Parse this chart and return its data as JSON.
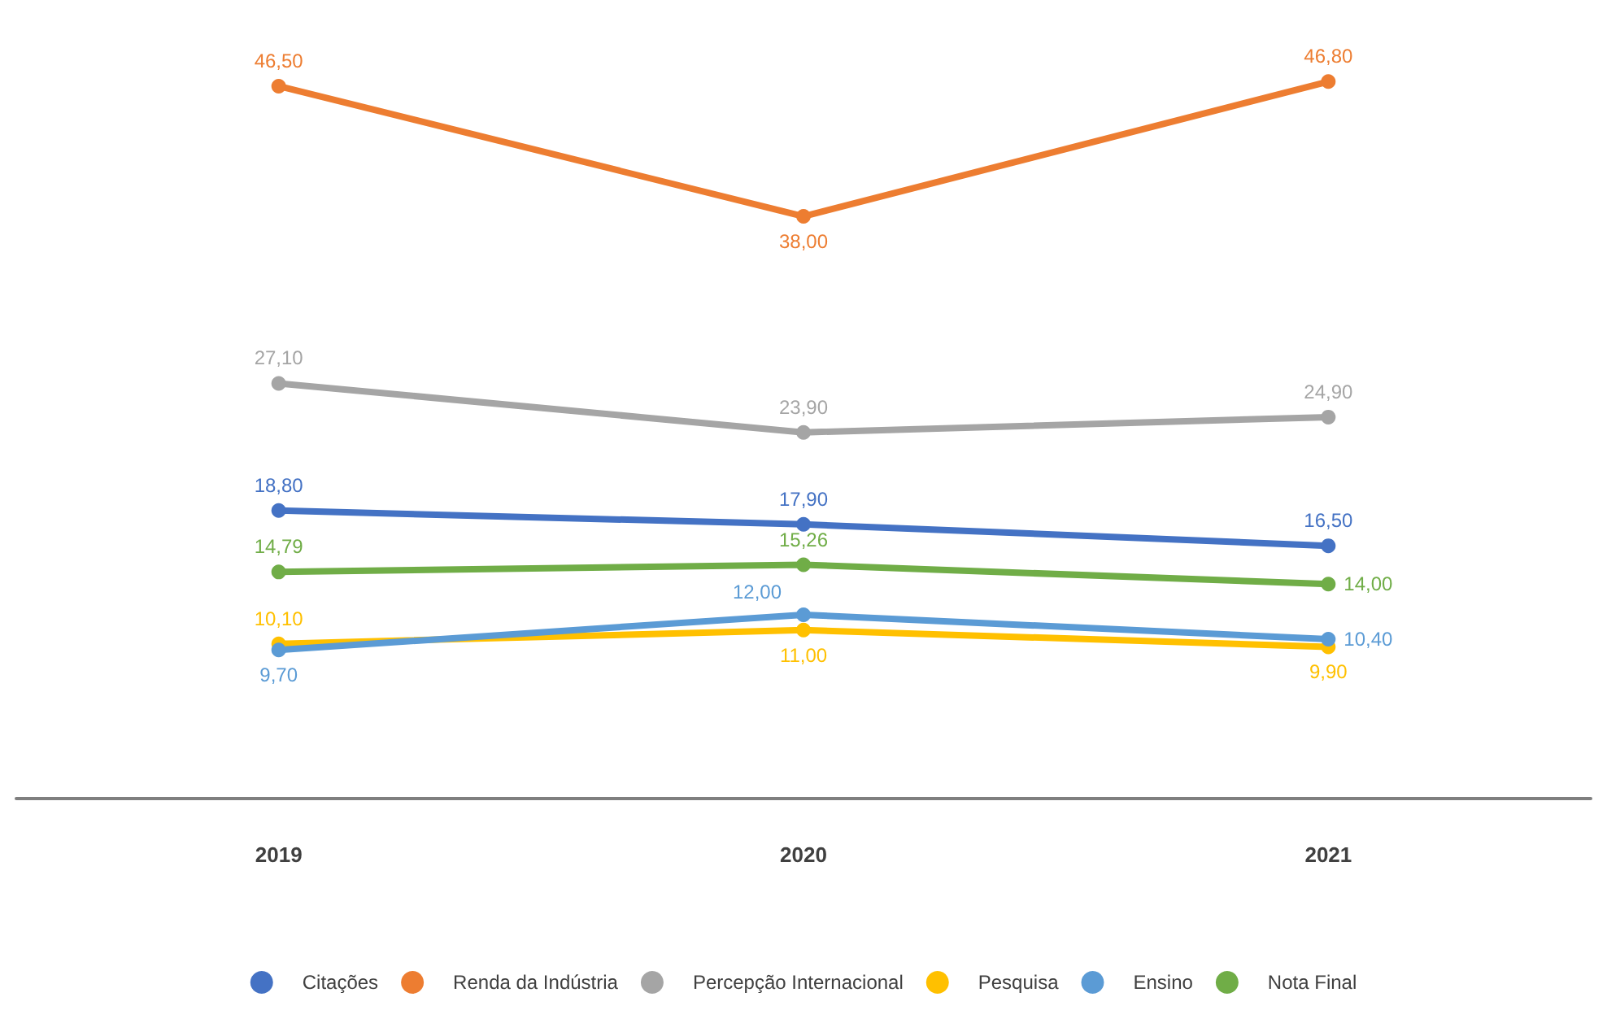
{
  "chart_data": {
    "type": "line",
    "categories": [
      "2019",
      "2020",
      "2021"
    ],
    "marker": "circle",
    "legend": "bottom",
    "tick_labels": "x",
    "series": [
      {
        "name": "Citações",
        "color": "#4472c4",
        "values": [
          18.8,
          17.9,
          16.5
        ],
        "value_labels": [
          "18,80",
          "17,90",
          "16,50"
        ]
      },
      {
        "name": "Renda da Indústria",
        "color": "#ed7d31",
        "values": [
          46.5,
          38.0,
          46.8
        ],
        "value_labels": [
          "46,50",
          "38,00",
          "46,80"
        ]
      },
      {
        "name": "Percepção Internacional",
        "color": "#a5a5a5",
        "values": [
          27.1,
          23.9,
          24.9
        ],
        "value_labels": [
          "27,10",
          "23,90",
          "24,90"
        ]
      },
      {
        "name": "Pesquisa",
        "color": "#ffc000",
        "values": [
          10.1,
          11.0,
          9.9
        ],
        "value_labels": [
          "10,10",
          "11,00",
          "9,90"
        ]
      },
      {
        "name": "Ensino",
        "color": "#5b9bd5",
        "values": [
          9.7,
          12.0,
          10.4
        ],
        "value_labels": [
          "9,70",
          "12,00",
          "10,40"
        ]
      },
      {
        "name": "Nota Final",
        "color": "#70ad47",
        "values": [
          14.79,
          15.26,
          14.0
        ],
        "value_labels": [
          "14,79",
          "15,26",
          "14,00"
        ]
      }
    ]
  }
}
